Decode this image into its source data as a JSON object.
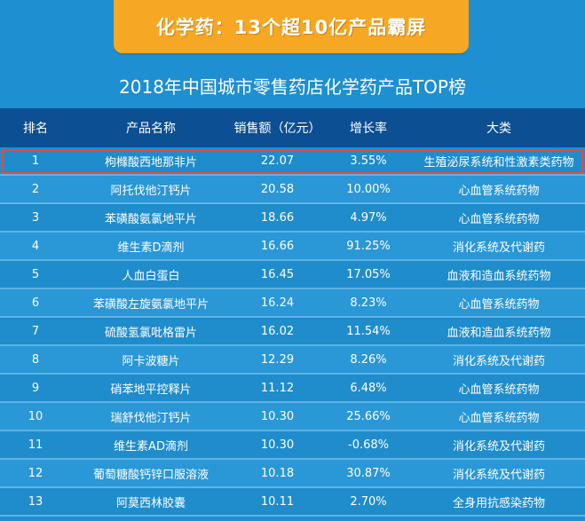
{
  "banner": {
    "title": "化学药：13个超10亿产品霸屏"
  },
  "subtitle": "2018年中国城市零售药店化学药产品TOP榜",
  "table": {
    "headers": [
      "排名",
      "产品名称",
      "销售额（亿元）",
      "增长率",
      "大类"
    ],
    "rows": [
      {
        "rank": "1",
        "name": "枸橼酸西地那非片",
        "sales": "22.07",
        "growth": "3.55%",
        "category": "生殖泌尿系统和性激素类药物"
      },
      {
        "rank": "2",
        "name": "阿托伐他汀钙片",
        "sales": "20.58",
        "growth": "10.00%",
        "category": "心血管系统药物"
      },
      {
        "rank": "3",
        "name": "苯磺酸氨氯地平片",
        "sales": "18.66",
        "growth": "4.97%",
        "category": "心血管系统药物"
      },
      {
        "rank": "4",
        "name": "维生素D滴剂",
        "sales": "16.66",
        "growth": "91.25%",
        "category": "消化系统及代谢药"
      },
      {
        "rank": "5",
        "name": "人血白蛋白",
        "sales": "16.45",
        "growth": "17.05%",
        "category": "血液和造血系统药物"
      },
      {
        "rank": "6",
        "name": "苯磺酸左旋氨氯地平片",
        "sales": "16.24",
        "growth": "8.23%",
        "category": "心血管系统药物"
      },
      {
        "rank": "7",
        "name": "硫酸氢氯吡格雷片",
        "sales": "16.02",
        "growth": "11.54%",
        "category": "血液和造血系统药物"
      },
      {
        "rank": "8",
        "name": "阿卡波糖片",
        "sales": "12.29",
        "growth": "8.26%",
        "category": "消化系统及代谢药"
      },
      {
        "rank": "9",
        "name": "硝苯地平控释片",
        "sales": "11.12",
        "growth": "6.48%",
        "category": "心血管系统药物"
      },
      {
        "rank": "10",
        "name": "瑞舒伐他汀钙片",
        "sales": "10.30",
        "growth": "25.66%",
        "category": "心血管系统药物"
      },
      {
        "rank": "11",
        "name": "维生素AD滴剂",
        "sales": "10.30",
        "growth": "-0.68%",
        "category": "消化系统及代谢药"
      },
      {
        "rank": "12",
        "name": "葡萄糖酸钙锌口服溶液",
        "sales": "10.18",
        "growth": "30.87%",
        "category": "消化系统及代谢药"
      },
      {
        "rank": "13",
        "name": "阿莫西林胶囊",
        "sales": "10.11",
        "growth": "2.70%",
        "category": "全身用抗感染药物"
      }
    ]
  },
  "colors": {
    "background": "#1e8fd0",
    "banner": "#f6a723",
    "header": "#0c4f93",
    "highlight": "#e84a3c"
  }
}
